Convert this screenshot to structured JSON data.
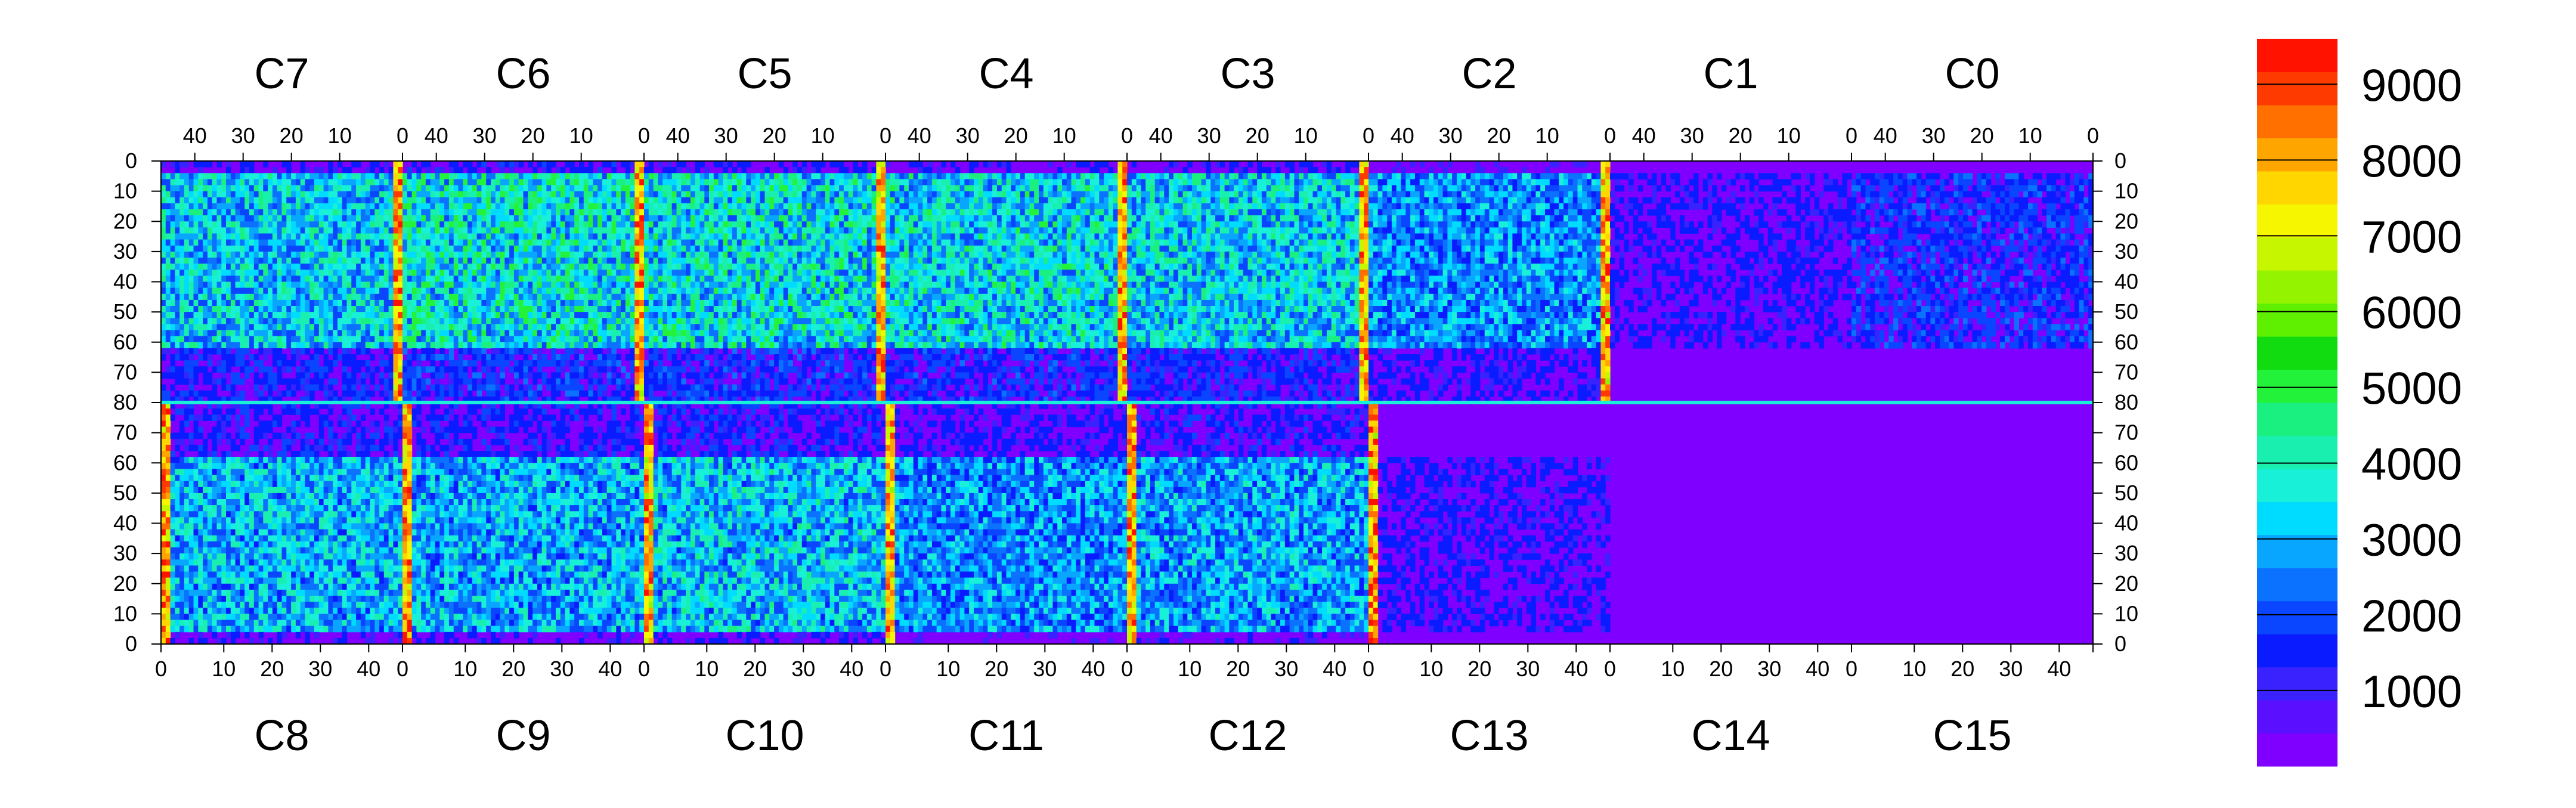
{
  "chart_data": {
    "type": "heatmap",
    "title": "",
    "xlabel": "",
    "ylabel": "",
    "chips_top": [
      "C7",
      "C6",
      "C5",
      "C4",
      "C3",
      "C2",
      "C1",
      "C0"
    ],
    "chips_bottom": [
      "C8",
      "C9",
      "C10",
      "C11",
      "C12",
      "C13",
      "C14",
      "C15"
    ],
    "top_axis_ticks": [
      "40",
      "30",
      "20",
      "10",
      "0"
    ],
    "bottom_axis_ticks": [
      "0",
      "10",
      "20",
      "30",
      "40"
    ],
    "left_axis_ticks": [
      "0",
      "10",
      "20",
      "30",
      "40",
      "50",
      "60",
      "70",
      "80",
      "70",
      "60",
      "50",
      "40",
      "30",
      "20",
      "10",
      "0"
    ],
    "right_axis_ticks": [
      "0",
      "10",
      "20",
      "30",
      "40",
      "50",
      "60",
      "70",
      "80",
      "70",
      "60",
      "50",
      "40",
      "30",
      "20",
      "10",
      "0"
    ],
    "columns_per_chip": 52,
    "rows_per_half": 80,
    "z_range": [
      0,
      9600
    ],
    "colorbar_labels": [
      "9000",
      "8000",
      "7000",
      "6000",
      "5000",
      "4000",
      "3000",
      "2000",
      "1000"
    ],
    "colorbar_values": [
      9000,
      8000,
      7000,
      6000,
      5000,
      4000,
      3000,
      2000,
      1000
    ],
    "colorscale": [
      "#7f00ff",
      "#5a0fff",
      "#3a22ff",
      "#0a1cff",
      "#0a45ff",
      "#0a72ff",
      "#09a6ff",
      "#00dcff",
      "#18f0d8",
      "#19f0b0",
      "#19f080",
      "#23f23a",
      "#11dc0f",
      "#5ef000",
      "#94f400",
      "#c6f600",
      "#f6f600",
      "#ffd600",
      "#ffa500",
      "#ff7000",
      "#ff3a00",
      "#ff1200"
    ],
    "hot_columns_note": "chip edge columns (x=0) show high occupancy",
    "chip_mean_occupancy_top": [
      3200,
      3600,
      3500,
      3400,
      3300,
      2600,
      1200,
      1600
    ],
    "chip_mean_occupancy_bottom": [
      3000,
      2900,
      3100,
      2600,
      2800,
      1200,
      800,
      600
    ]
  }
}
